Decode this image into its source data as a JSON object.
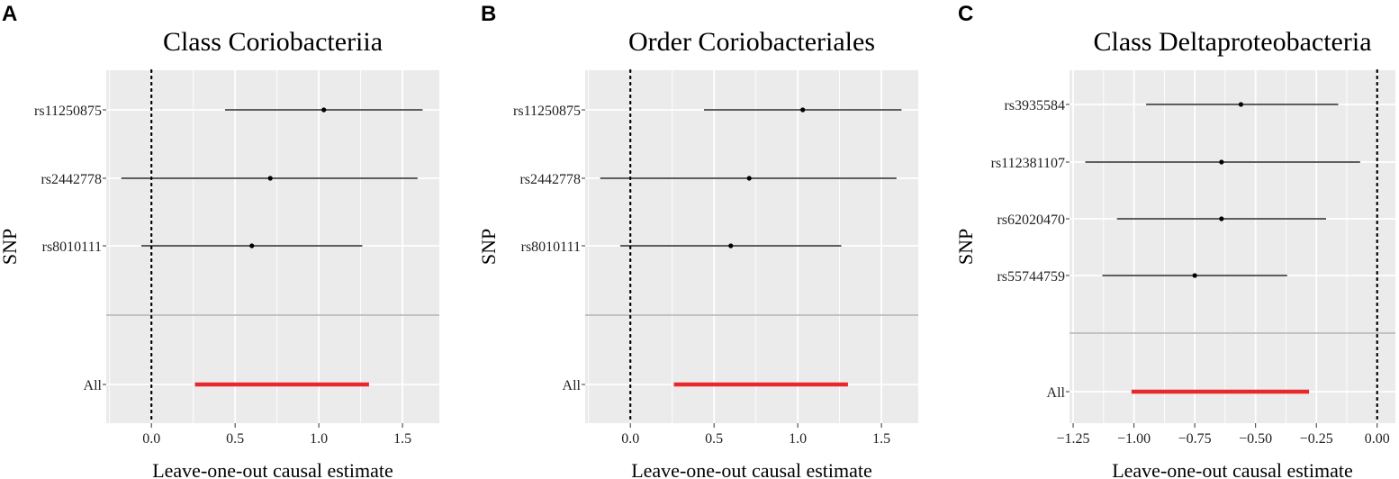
{
  "chart_data": [
    {
      "type": "forest",
      "panel_label": "A",
      "title": "Class Coriobacteriia",
      "xlabel": "Leave-one-out causal estimate",
      "ylabel": "SNP",
      "xlim": [
        -0.27,
        1.72
      ],
      "xticks": [
        "0.0",
        "0.5",
        "1.0",
        "1.5"
      ],
      "xtick_values": [
        0,
        0.5,
        1.0,
        1.5
      ],
      "reference_line": 0,
      "snps": [
        {
          "name": "rs11250875",
          "estimate": 1.03,
          "lower": 0.44,
          "upper": 1.62
        },
        {
          "name": "rs2442778",
          "estimate": 0.71,
          "lower": -0.18,
          "upper": 1.59
        },
        {
          "name": "rs8010111",
          "estimate": 0.6,
          "lower": -0.06,
          "upper": 1.26
        }
      ],
      "overall": {
        "name": "All",
        "estimate": 0.78,
        "lower": 0.26,
        "upper": 1.3
      }
    },
    {
      "type": "forest",
      "panel_label": "B",
      "title": "Order Coriobacteriales",
      "xlabel": "Leave-one-out causal estimate",
      "ylabel": "SNP",
      "xlim": [
        -0.27,
        1.72
      ],
      "xticks": [
        "0.0",
        "0.5",
        "1.0",
        "1.5"
      ],
      "xtick_values": [
        0,
        0.5,
        1.0,
        1.5
      ],
      "reference_line": 0,
      "snps": [
        {
          "name": "rs11250875",
          "estimate": 1.03,
          "lower": 0.44,
          "upper": 1.62
        },
        {
          "name": "rs2442778",
          "estimate": 0.71,
          "lower": -0.18,
          "upper": 1.59
        },
        {
          "name": "rs8010111",
          "estimate": 0.6,
          "lower": -0.06,
          "upper": 1.26
        }
      ],
      "overall": {
        "name": "All",
        "estimate": 0.78,
        "lower": 0.26,
        "upper": 1.3
      }
    },
    {
      "type": "forest",
      "panel_label": "C",
      "title": "Class Deltaproteobacteria",
      "xlabel": "Leave-one-out causal estimate",
      "ylabel": "SNP",
      "xlim": [
        -1.265,
        0.075
      ],
      "xticks": [
        "−1.25",
        "−1.00",
        "−0.75",
        "−0.50",
        "−0.25",
        "0.00"
      ],
      "xtick_values": [
        -1.25,
        -1.0,
        -0.75,
        -0.5,
        -0.25,
        0
      ],
      "reference_line": 0,
      "snps": [
        {
          "name": "rs3935584",
          "estimate": -0.56,
          "lower": -0.95,
          "upper": -0.16
        },
        {
          "name": "rs112381107",
          "estimate": -0.64,
          "lower": -1.2,
          "upper": -0.07
        },
        {
          "name": "rs62020470",
          "estimate": -0.64,
          "lower": -1.07,
          "upper": -0.21
        },
        {
          "name": "rs55744759",
          "estimate": -0.75,
          "lower": -1.13,
          "upper": -0.37
        }
      ],
      "overall": {
        "name": "All",
        "estimate": -0.64,
        "lower": -1.01,
        "upper": -0.28
      }
    }
  ],
  "colors": {
    "panel_bg": "#ebebeb",
    "grid": "#ffffff",
    "point": "#000000",
    "overall": "#e8282b",
    "separator": "#bdbdbd"
  }
}
